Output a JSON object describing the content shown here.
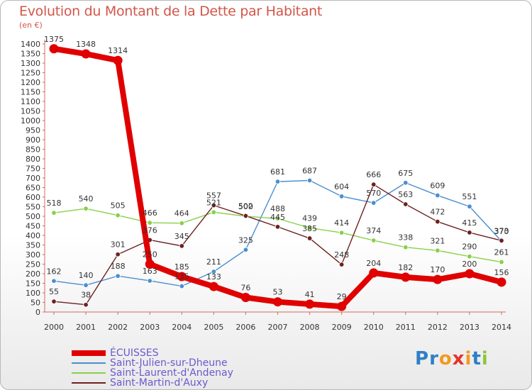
{
  "title": "Evolution du Montant de la Dette par Habitant",
  "unit": "(en €)",
  "logo": {
    "letters": [
      "P",
      "r",
      "o",
      "x",
      "i",
      "t",
      "i"
    ],
    "colors": [
      "#2f7fc6",
      "#2f7fc6",
      "#f29a1e",
      "#e5332a",
      "#f29a1e",
      "#2f7fc6",
      "#8dc63f"
    ]
  },
  "chart_data": {
    "type": "line",
    "title": "Evolution du Montant de la Dette par Habitant",
    "ylabel": "(en €)",
    "xlabel": "",
    "x": [
      "2000",
      "2001",
      "2002",
      "2003",
      "2004",
      "2005",
      "2006",
      "2007",
      "2008",
      "2009",
      "2010",
      "2011",
      "2012",
      "2013",
      "2014"
    ],
    "ylim": [
      0,
      1400
    ],
    "yticks": [
      "0",
      "50",
      "100",
      "150",
      "200",
      "250",
      "300",
      "350",
      "400",
      "450",
      "500",
      "550",
      "600",
      "650",
      "700",
      "750",
      "800",
      "850",
      "900",
      "950",
      "1000",
      "1050",
      "1100",
      "1150",
      "1200",
      "1250",
      "1300",
      "1350",
      "1400"
    ],
    "grid": false,
    "legend_position": "bottom-left",
    "series": [
      {
        "name": "ÉCUISSES",
        "color": "#e00000",
        "values": [
          1375,
          1348,
          1314,
          250,
          185,
          133,
          76,
          53,
          41,
          29,
          204,
          182,
          170,
          200,
          156
        ],
        "labels": [
          "1375",
          "1348",
          "1314",
          "250",
          "185",
          "133",
          "76",
          "53",
          "41",
          "29",
          "204",
          "182",
          "170",
          "200",
          "156"
        ]
      },
      {
        "name": "Saint-Julien-sur-Dheune",
        "color": "#4a8fcf",
        "values": [
          162,
          140,
          188,
          163,
          135,
          211,
          325,
          681,
          687,
          604,
          570,
          675,
          609,
          551,
          370
        ],
        "labels": [
          "162",
          "140",
          "188",
          "163",
          "135",
          "211",
          "325",
          "681",
          "687",
          "604",
          "570",
          "675",
          "609",
          "551",
          "370"
        ]
      },
      {
        "name": "Saint-Laurent-d'Andenay",
        "color": "#88d04c",
        "values": [
          518,
          540,
          505,
          466,
          464,
          521,
          500,
          488,
          439,
          414,
          374,
          338,
          321,
          290,
          261
        ],
        "labels": [
          "518",
          "540",
          "505",
          "466",
          "464",
          "521",
          "500",
          "488",
          "439",
          "414",
          "374",
          "338",
          "321",
          "290",
          "261"
        ]
      },
      {
        "name": "Saint-Martin-d'Auxy",
        "color": "#6e2020",
        "values": [
          55,
          38,
          301,
          376,
          345,
          557,
          502,
          445,
          385,
          248,
          666,
          563,
          472,
          415,
          373
        ],
        "labels": [
          "55",
          "38",
          "301",
          "376",
          "345",
          "557",
          "502",
          "445",
          "385",
          "248",
          "666",
          "563",
          "472",
          "415",
          "373"
        ]
      }
    ]
  }
}
